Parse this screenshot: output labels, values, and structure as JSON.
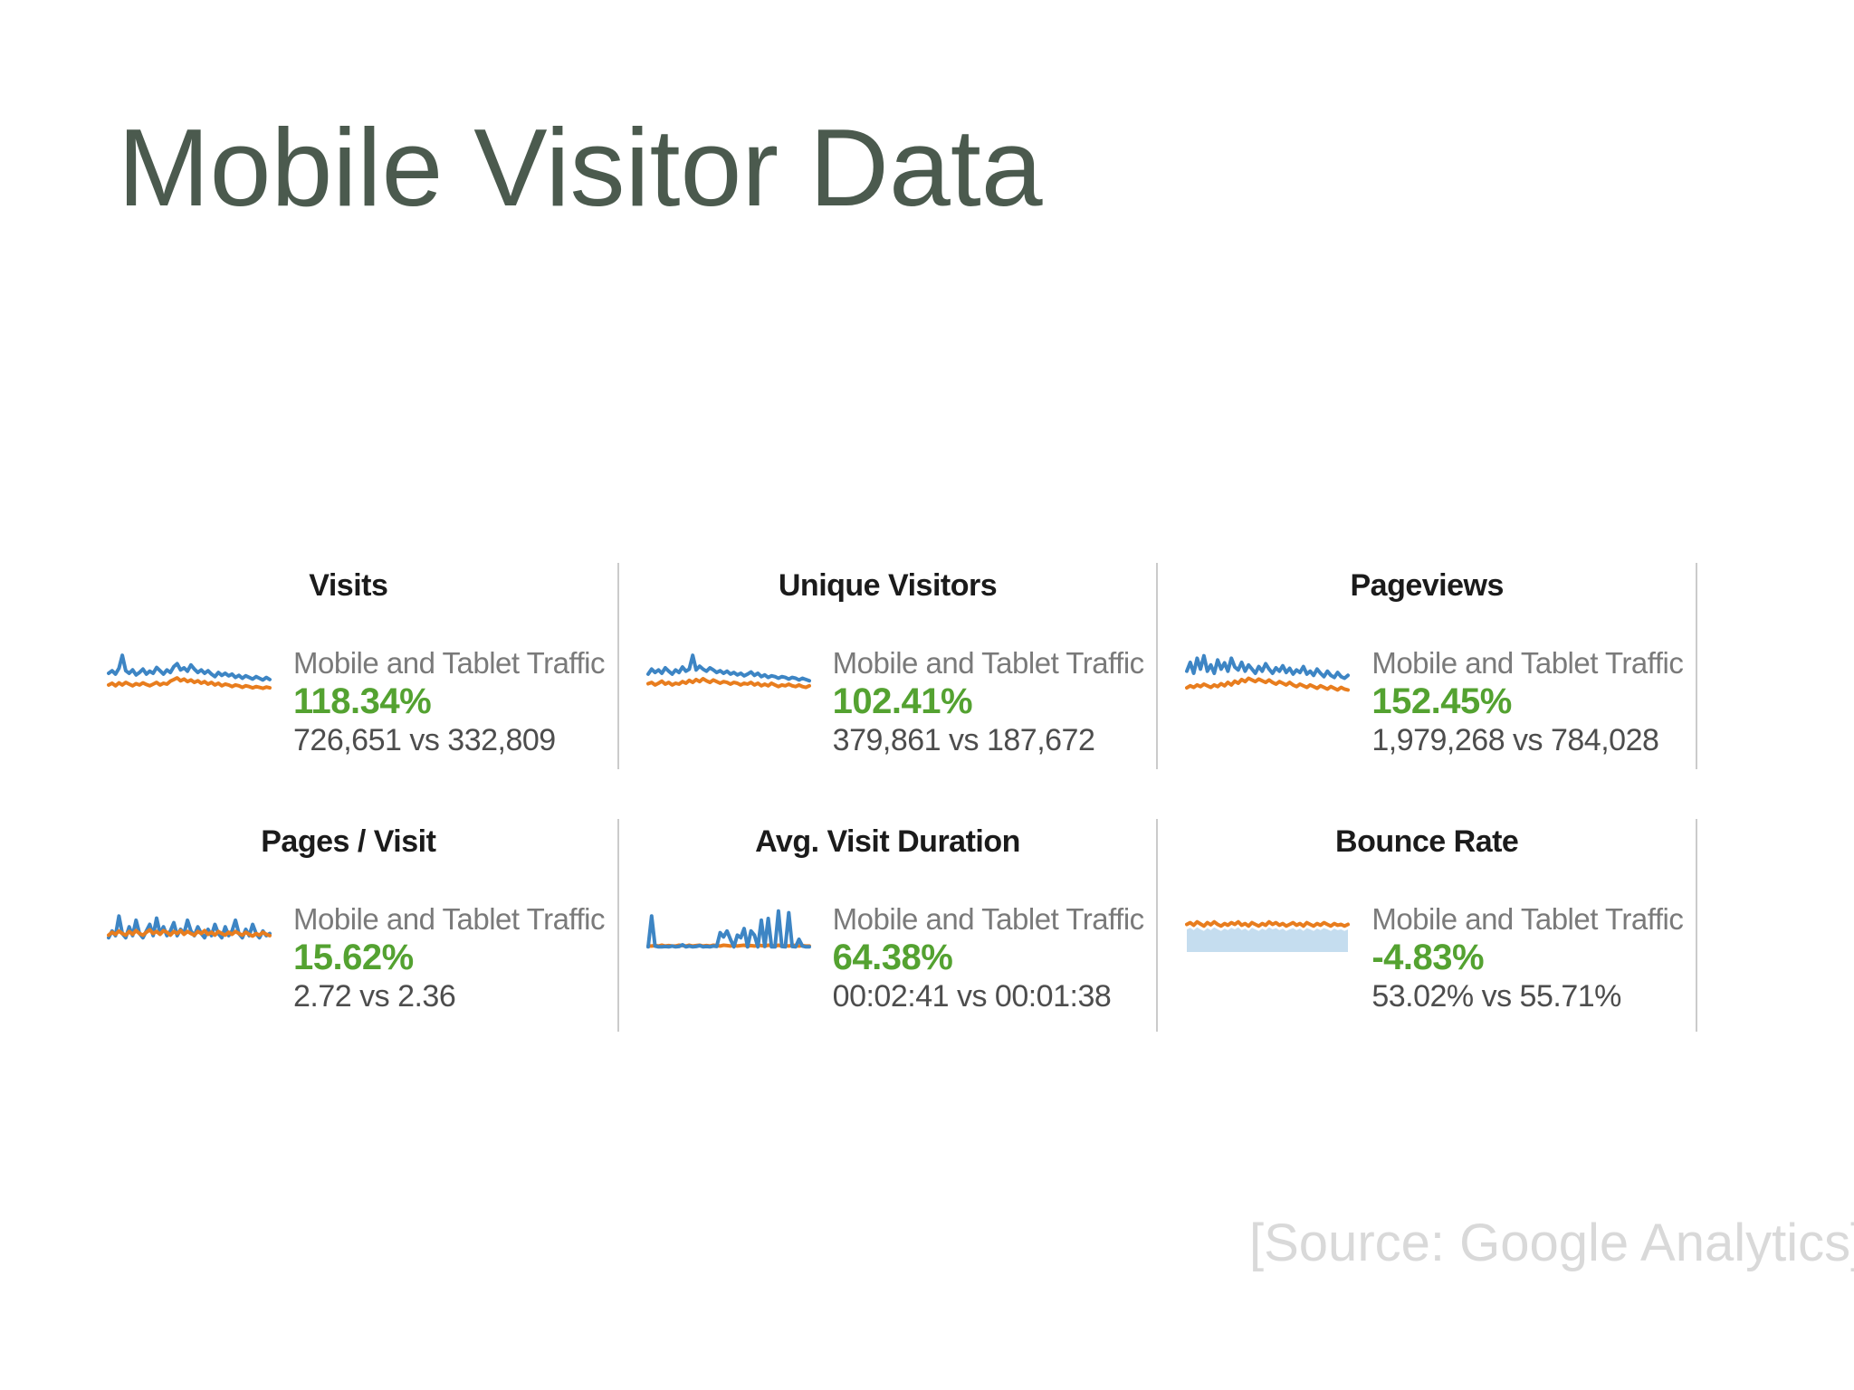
{
  "slide": {
    "title": "Mobile Visitor Data",
    "source_note": "[Source: Google Analytics]"
  },
  "colors": {
    "title_green": "#4b5a4e",
    "metric_green": "#54a231",
    "label_gray": "#7a7a7a",
    "value_gray": "#4d4d4d",
    "divider_gray": "#cbcbcb",
    "source_gray": "#d9d9d9",
    "blue": "#3d85c4",
    "orange": "#e87d1e",
    "lightblue": "#c5ddef"
  },
  "dashboard": {
    "metrics": [
      {
        "id": "visits",
        "title": "Visits",
        "label": "Mobile and Tablet Traffic",
        "change_percent": "118.34%",
        "comparison": "726,651 vs 332,809"
      },
      {
        "id": "unique-visitors",
        "title": "Unique Visitors",
        "label": "Mobile and Tablet Traffic",
        "change_percent": "102.41%",
        "comparison": "379,861 vs 187,672"
      },
      {
        "id": "pageviews",
        "title": "Pageviews",
        "label": "Mobile and Tablet Traffic",
        "change_percent": "152.45%",
        "comparison": "1,979,268 vs 784,028"
      },
      {
        "id": "pages-per-visit",
        "title": "Pages / Visit",
        "label": "Mobile and Tablet Traffic",
        "change_percent": "15.62%",
        "comparison": "2.72 vs 2.36"
      },
      {
        "id": "avg-visit-duration",
        "title": "Avg. Visit Duration",
        "label": "Mobile and Tablet Traffic",
        "change_percent": "64.38%",
        "comparison": "00:02:41 vs 00:01:38"
      },
      {
        "id": "bounce-rate",
        "title": "Bounce Rate",
        "label": "Mobile and Tablet Traffic",
        "change_percent": "-4.83%",
        "comparison": "53.02% vs 55.71%"
      }
    ]
  },
  "chart_data": [
    {
      "metric": "Visits",
      "type": "line",
      "title": "Visits",
      "note": "unlabeled sparkline thumbnail, values normalized 0-1",
      "values_compared": [
        726651,
        332809
      ],
      "change_percent": 118.34,
      "series": [
        {
          "name": "orange-series",
          "color": "orange",
          "values": [
            0.22,
            0.26,
            0.2,
            0.27,
            0.22,
            0.28,
            0.24,
            0.2,
            0.25,
            0.22,
            0.27,
            0.23,
            0.2,
            0.24,
            0.28,
            0.22,
            0.26,
            0.24,
            0.31,
            0.35,
            0.39,
            0.32,
            0.36,
            0.3,
            0.34,
            0.28,
            0.32,
            0.26,
            0.3,
            0.24,
            0.28,
            0.22,
            0.26,
            0.2,
            0.24,
            0.22,
            0.18,
            0.22,
            0.2,
            0.16,
            0.2,
            0.18,
            0.15,
            0.18,
            0.16,
            0.14,
            0.17,
            0.15
          ]
        },
        {
          "name": "blue-series",
          "color": "blue",
          "values": [
            0.5,
            0.56,
            0.48,
            0.62,
            0.93,
            0.56,
            0.5,
            0.58,
            0.46,
            0.52,
            0.6,
            0.48,
            0.55,
            0.5,
            0.64,
            0.56,
            0.48,
            0.58,
            0.52,
            0.66,
            0.73,
            0.58,
            0.63,
            0.55,
            0.7,
            0.6,
            0.52,
            0.58,
            0.5,
            0.56,
            0.48,
            0.42,
            0.52,
            0.45,
            0.5,
            0.44,
            0.48,
            0.4,
            0.45,
            0.38,
            0.44,
            0.4,
            0.36,
            0.42,
            0.38,
            0.34,
            0.4,
            0.35
          ]
        }
      ]
    },
    {
      "metric": "Unique Visitors",
      "type": "line",
      "title": "Unique Visitors",
      "note": "unlabeled sparkline thumbnail, values normalized 0-1",
      "values_compared": [
        379861,
        187672
      ],
      "change_percent": 102.41,
      "series": [
        {
          "name": "orange-series",
          "color": "orange",
          "values": [
            0.25,
            0.28,
            0.22,
            0.26,
            0.31,
            0.24,
            0.28,
            0.22,
            0.26,
            0.24,
            0.3,
            0.26,
            0.33,
            0.28,
            0.35,
            0.3,
            0.37,
            0.32,
            0.28,
            0.34,
            0.3,
            0.26,
            0.3,
            0.28,
            0.24,
            0.28,
            0.26,
            0.22,
            0.26,
            0.24,
            0.28,
            0.22,
            0.26,
            0.2,
            0.24,
            0.2,
            0.26,
            0.22,
            0.18,
            0.22,
            0.2,
            0.24,
            0.2,
            0.18,
            0.22,
            0.18,
            0.16,
            0.2
          ]
        },
        {
          "name": "blue-series",
          "color": "blue",
          "values": [
            0.48,
            0.6,
            0.52,
            0.58,
            0.5,
            0.63,
            0.55,
            0.48,
            0.58,
            0.52,
            0.65,
            0.55,
            0.6,
            0.93,
            0.58,
            0.67,
            0.6,
            0.55,
            0.63,
            0.58,
            0.52,
            0.56,
            0.5,
            0.55,
            0.48,
            0.52,
            0.46,
            0.5,
            0.44,
            0.48,
            0.53,
            0.45,
            0.5,
            0.42,
            0.46,
            0.4,
            0.44,
            0.42,
            0.38,
            0.42,
            0.4,
            0.36,
            0.4,
            0.38,
            0.34,
            0.38,
            0.35,
            0.32
          ]
        }
      ]
    },
    {
      "metric": "Pageviews",
      "type": "line",
      "title": "Pageviews",
      "note": "unlabeled sparkline thumbnail, values normalized 0-1",
      "values_compared": [
        1979268,
        784028
      ],
      "change_percent": 152.45,
      "series": [
        {
          "name": "orange-series",
          "color": "orange",
          "values": [
            0.15,
            0.2,
            0.16,
            0.22,
            0.18,
            0.24,
            0.2,
            0.16,
            0.22,
            0.18,
            0.25,
            0.2,
            0.28,
            0.22,
            0.31,
            0.26,
            0.35,
            0.3,
            0.38,
            0.34,
            0.3,
            0.36,
            0.32,
            0.28,
            0.34,
            0.28,
            0.24,
            0.3,
            0.26,
            0.22,
            0.28,
            0.22,
            0.18,
            0.24,
            0.2,
            0.16,
            0.22,
            0.18,
            0.14,
            0.2,
            0.16,
            0.12,
            0.18,
            0.14,
            0.1,
            0.16,
            0.12,
            0.1
          ]
        },
        {
          "name": "blue-series",
          "color": "blue",
          "values": [
            0.55,
            0.76,
            0.5,
            0.86,
            0.6,
            0.92,
            0.55,
            0.7,
            0.5,
            0.82,
            0.6,
            0.75,
            0.55,
            0.86,
            0.65,
            0.58,
            0.76,
            0.55,
            0.7,
            0.6,
            0.5,
            0.66,
            0.55,
            0.73,
            0.6,
            0.5,
            0.63,
            0.55,
            0.68,
            0.52,
            0.62,
            0.48,
            0.58,
            0.52,
            0.66,
            0.48,
            0.55,
            0.45,
            0.6,
            0.5,
            0.42,
            0.55,
            0.45,
            0.4,
            0.52,
            0.42,
            0.38,
            0.45
          ]
        }
      ]
    },
    {
      "metric": "Pages / Visit",
      "type": "line",
      "title": "Pages / Visit",
      "note": "unlabeled sparkline thumbnail, values normalized 0-1",
      "values_compared": [
        2.72,
        2.36
      ],
      "change_percent": 15.62,
      "series": [
        {
          "name": "blue-series",
          "color": "blue",
          "values": [
            0.3,
            0.46,
            0.35,
            0.82,
            0.4,
            0.3,
            0.56,
            0.35,
            0.72,
            0.4,
            0.3,
            0.46,
            0.62,
            0.35,
            0.77,
            0.4,
            0.56,
            0.35,
            0.46,
            0.66,
            0.35,
            0.5,
            0.4,
            0.72,
            0.46,
            0.35,
            0.56,
            0.4,
            0.3,
            0.5,
            0.35,
            0.62,
            0.4,
            0.3,
            0.56,
            0.35,
            0.46,
            0.72,
            0.4,
            0.3,
            0.5,
            0.35,
            0.62,
            0.4,
            0.3,
            0.46,
            0.35,
            0.4
          ]
        },
        {
          "name": "orange-series",
          "color": "orange",
          "values": [
            0.36,
            0.43,
            0.38,
            0.46,
            0.4,
            0.36,
            0.45,
            0.38,
            0.47,
            0.4,
            0.36,
            0.43,
            0.49,
            0.4,
            0.45,
            0.38,
            0.47,
            0.43,
            0.36,
            0.45,
            0.4,
            0.47,
            0.38,
            0.45,
            0.4,
            0.36,
            0.45,
            0.4,
            0.47,
            0.38,
            0.43,
            0.36,
            0.45,
            0.4,
            0.36,
            0.43,
            0.38,
            0.45,
            0.4,
            0.36,
            0.43,
            0.38,
            0.34,
            0.4,
            0.36,
            0.43,
            0.38,
            0.35
          ]
        }
      ]
    },
    {
      "metric": "Avg. Visit Duration",
      "type": "line",
      "title": "Avg. Visit Duration",
      "note": "unlabeled sparkline thumbnail, values normalized 0-1",
      "values_compared": [
        "00:02:41",
        "00:01:38"
      ],
      "change_percent": 64.38,
      "series": [
        {
          "name": "orange-series",
          "color": "orange",
          "values": [
            0.1,
            0.1,
            0.11,
            0.1,
            0.12,
            0.1,
            0.11,
            0.1,
            0.1,
            0.12,
            0.11,
            0.1,
            0.12,
            0.1,
            0.11,
            0.12,
            0.1,
            0.11,
            0.1,
            0.12,
            0.11,
            0.1,
            0.12,
            0.11,
            0.1,
            0.12,
            0.1,
            0.11,
            0.12,
            0.1,
            0.11,
            0.1,
            0.12,
            0.11,
            0.1,
            0.12,
            0.11,
            0.1,
            0.12,
            0.1,
            0.11,
            0.1,
            0.12,
            0.11,
            0.1,
            0.11,
            0.1,
            0.1
          ]
        },
        {
          "name": "blue-series",
          "color": "blue",
          "values": [
            0.08,
            0.82,
            0.1,
            0.08,
            0.08,
            0.09,
            0.08,
            0.1,
            0.08,
            0.09,
            0.13,
            0.08,
            0.1,
            0.08,
            0.09,
            0.11,
            0.08,
            0.09,
            0.08,
            0.1,
            0.09,
            0.42,
            0.32,
            0.46,
            0.26,
            0.08,
            0.36,
            0.3,
            0.52,
            0.08,
            0.46,
            0.36,
            0.08,
            0.72,
            0.09,
            0.76,
            0.08,
            0.08,
            0.94,
            0.09,
            0.08,
            0.9,
            0.09,
            0.08,
            0.26,
            0.1,
            0.08,
            0.08
          ]
        }
      ]
    },
    {
      "metric": "Bounce Rate",
      "type": "line",
      "title": "Bounce Rate",
      "note": "unlabeled sparkline thumbnail, values normalized 0-1",
      "values_compared": [
        "53.02%",
        "55.71%"
      ],
      "change_percent": -4.83,
      "series": [
        {
          "name": "lightblue-area",
          "color": "lightblue",
          "fill": true,
          "values": [
            0.5,
            0.54,
            0.48,
            0.55,
            0.5,
            0.46,
            0.53,
            0.48,
            0.55,
            0.5,
            0.46,
            0.52,
            0.48,
            0.54,
            0.5,
            0.55,
            0.48,
            0.52,
            0.46,
            0.54,
            0.5,
            0.46,
            0.52,
            0.48,
            0.55,
            0.5,
            0.53,
            0.48,
            0.52,
            0.46,
            0.5,
            0.53,
            0.48,
            0.52,
            0.46,
            0.53,
            0.5,
            0.46,
            0.52,
            0.48,
            0.53,
            0.5,
            0.46,
            0.52,
            0.48,
            0.5,
            0.46,
            0.5
          ]
        },
        {
          "name": "orange-series",
          "color": "orange",
          "values": [
            0.62,
            0.66,
            0.6,
            0.68,
            0.63,
            0.58,
            0.66,
            0.61,
            0.68,
            0.62,
            0.58,
            0.64,
            0.6,
            0.66,
            0.62,
            0.68,
            0.6,
            0.64,
            0.58,
            0.66,
            0.62,
            0.58,
            0.64,
            0.6,
            0.68,
            0.62,
            0.66,
            0.6,
            0.64,
            0.58,
            0.62,
            0.66,
            0.6,
            0.64,
            0.58,
            0.66,
            0.62,
            0.58,
            0.64,
            0.6,
            0.66,
            0.62,
            0.58,
            0.64,
            0.6,
            0.62,
            0.58,
            0.62
          ]
        }
      ]
    }
  ]
}
